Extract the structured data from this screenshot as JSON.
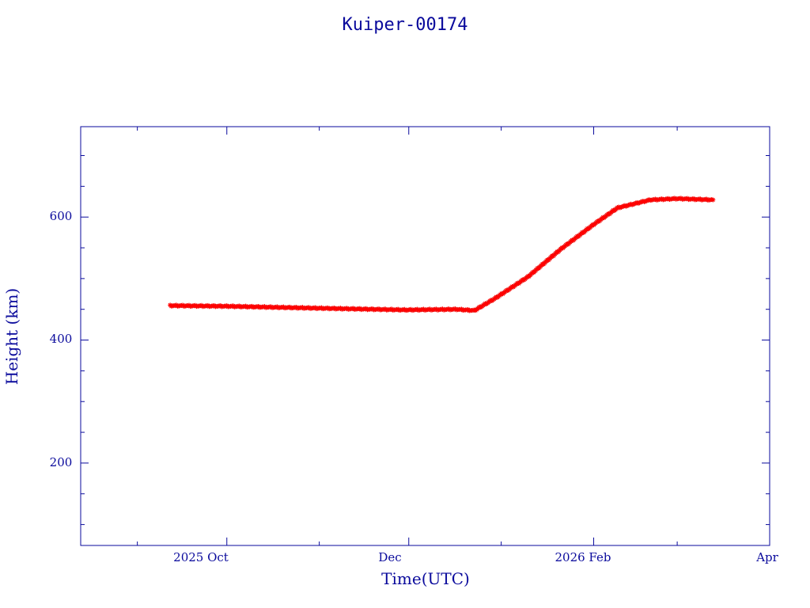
{
  "chart_data": {
    "type": "line",
    "title": "Kuiper-00174",
    "xlabel": "Time(UTC)",
    "ylabel": "Height (km)",
    "x_ticks": [
      "2025 Oct",
      "Dec",
      "2026 Feb",
      "Apr"
    ],
    "y_ticks": [
      "200",
      "400",
      "600"
    ],
    "xlim": [
      "2025-08-13",
      "2026-04-01"
    ],
    "ylim": [
      66,
      747
    ],
    "grid": false,
    "series": [
      {
        "color": "#ff0000",
        "marker": "star",
        "points": [
          {
            "x": "2025-09-12",
            "y": 456
          },
          {
            "x": "2025-10-01",
            "y": 455
          },
          {
            "x": "2025-10-20",
            "y": 453
          },
          {
            "x": "2025-11-09",
            "y": 451
          },
          {
            "x": "2025-11-30",
            "y": 449
          },
          {
            "x": "2025-12-17",
            "y": 450
          },
          {
            "x": "2025-12-23",
            "y": 448
          },
          {
            "x": "2025-12-30",
            "y": 468
          },
          {
            "x": "2026-01-10",
            "y": 503
          },
          {
            "x": "2026-01-21",
            "y": 548
          },
          {
            "x": "2026-02-01",
            "y": 588
          },
          {
            "x": "2026-02-09",
            "y": 615
          },
          {
            "x": "2026-02-20",
            "y": 628
          },
          {
            "x": "2026-03-01",
            "y": 630
          },
          {
            "x": "2026-03-13",
            "y": 628
          }
        ]
      }
    ],
    "colors": {
      "axes": "#0a0a9c",
      "text": "#0a0a9c",
      "series": "#ff0000",
      "secondary": "#3cb4a0"
    }
  }
}
